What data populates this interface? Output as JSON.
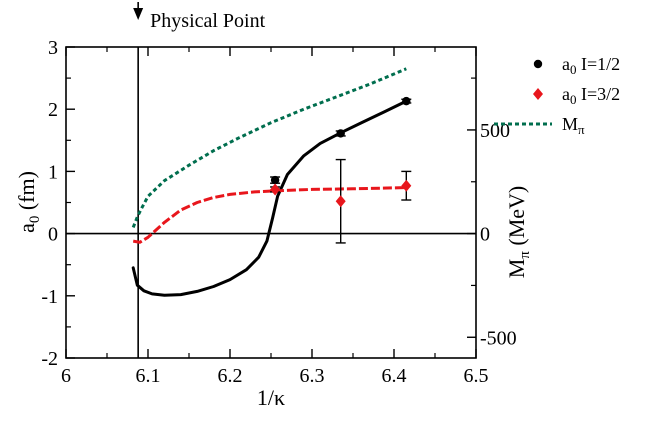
{
  "chart_data": {
    "type": "scatter",
    "xlabel": "1/κ",
    "ylabel_left": "a₀ (fm)",
    "ylabel_right": "M_π (MeV)",
    "xlim": [
      6.0,
      6.5
    ],
    "ylim_left": [
      -2,
      3
    ],
    "ylim_right": [
      -600,
      900
    ],
    "x_ticks": [
      6.0,
      6.1,
      6.2,
      6.3,
      6.4,
      6.5
    ],
    "x_tick_labels": [
      "6",
      "6.1",
      "6.2",
      "6.3",
      "6.4",
      "6.5"
    ],
    "y_ticks_left": [
      -2,
      -1,
      0,
      1,
      2,
      3
    ],
    "y_tick_labels_left": [
      "-2",
      "-1",
      "0",
      "1",
      "2",
      "3"
    ],
    "y_ticks_right": [
      -500,
      0,
      500
    ],
    "y_tick_labels_right": [
      "-500",
      "0",
      "500"
    ],
    "annotation": {
      "text": "Physical Point",
      "x": 6.088
    },
    "legend": {
      "placement": "top-right",
      "entries": [
        {
          "label": "a0 I=1/2",
          "sym": "a",
          "sub": "0",
          "rest": " I=1/2",
          "color": "#000000",
          "marker": "circle"
        },
        {
          "label": "a0 I=3/2",
          "sym": "a",
          "sub": "0",
          "rest": " I=3/2",
          "color": "#e8161c",
          "marker": "diamond"
        },
        {
          "label": "Mπ",
          "sym": "M",
          "sub": "π",
          "rest": "",
          "color": "#006e4e",
          "marker": "dash"
        }
      ]
    },
    "series": [
      {
        "name": "a0 I=1/2",
        "color": "#000000",
        "marker": "circle",
        "points": [
          {
            "x": 6.255,
            "y": 0.86,
            "err": 0.05
          },
          {
            "x": 6.335,
            "y": 1.61,
            "err": 0.04
          },
          {
            "x": 6.415,
            "y": 2.13,
            "err": 0.03
          }
        ],
        "fit": [
          [
            6.082,
            -0.55
          ],
          [
            6.087,
            -0.83
          ],
          [
            6.095,
            -0.92
          ],
          [
            6.105,
            -0.97
          ],
          [
            6.12,
            -0.99
          ],
          [
            6.14,
            -0.98
          ],
          [
            6.16,
            -0.93
          ],
          [
            6.18,
            -0.85
          ],
          [
            6.2,
            -0.74
          ],
          [
            6.22,
            -0.58
          ],
          [
            6.235,
            -0.38
          ],
          [
            6.245,
            -0.12
          ],
          [
            6.252,
            0.25
          ],
          [
            6.258,
            0.6
          ],
          [
            6.27,
            0.95
          ],
          [
            6.29,
            1.25
          ],
          [
            6.31,
            1.45
          ],
          [
            6.335,
            1.62
          ],
          [
            6.36,
            1.78
          ],
          [
            6.39,
            1.97
          ],
          [
            6.415,
            2.13
          ]
        ]
      },
      {
        "name": "a0 I=3/2",
        "color": "#e8161c",
        "marker": "diamond",
        "points": [
          {
            "x": 6.255,
            "y": 0.71,
            "err": 0.04
          },
          {
            "x": 6.335,
            "y": 0.52,
            "err": 0.67
          },
          {
            "x": 6.415,
            "y": 0.77,
            "err": 0.23
          }
        ],
        "fit": [
          [
            6.082,
            -0.12
          ],
          [
            6.09,
            -0.14
          ],
          [
            6.1,
            -0.06
          ],
          [
            6.12,
            0.18
          ],
          [
            6.14,
            0.38
          ],
          [
            6.16,
            0.5
          ],
          [
            6.18,
            0.58
          ],
          [
            6.2,
            0.63
          ],
          [
            6.23,
            0.67
          ],
          [
            6.26,
            0.69
          ],
          [
            6.3,
            0.71
          ],
          [
            6.35,
            0.72
          ],
          [
            6.415,
            0.74
          ]
        ]
      },
      {
        "name": "Mπ",
        "color": "#006e4e",
        "style": "dashed",
        "axis": "right",
        "fit": [
          [
            6.082,
            30
          ],
          [
            6.087,
            80
          ],
          [
            6.092,
            120
          ],
          [
            6.1,
            180
          ],
          [
            6.12,
            255
          ],
          [
            6.15,
            330
          ],
          [
            6.18,
            400
          ],
          [
            6.21,
            460
          ],
          [
            6.25,
            535
          ],
          [
            6.29,
            600
          ],
          [
            6.33,
            660
          ],
          [
            6.37,
            720
          ],
          [
            6.4,
            770
          ],
          [
            6.415,
            795
          ]
        ]
      }
    ]
  }
}
